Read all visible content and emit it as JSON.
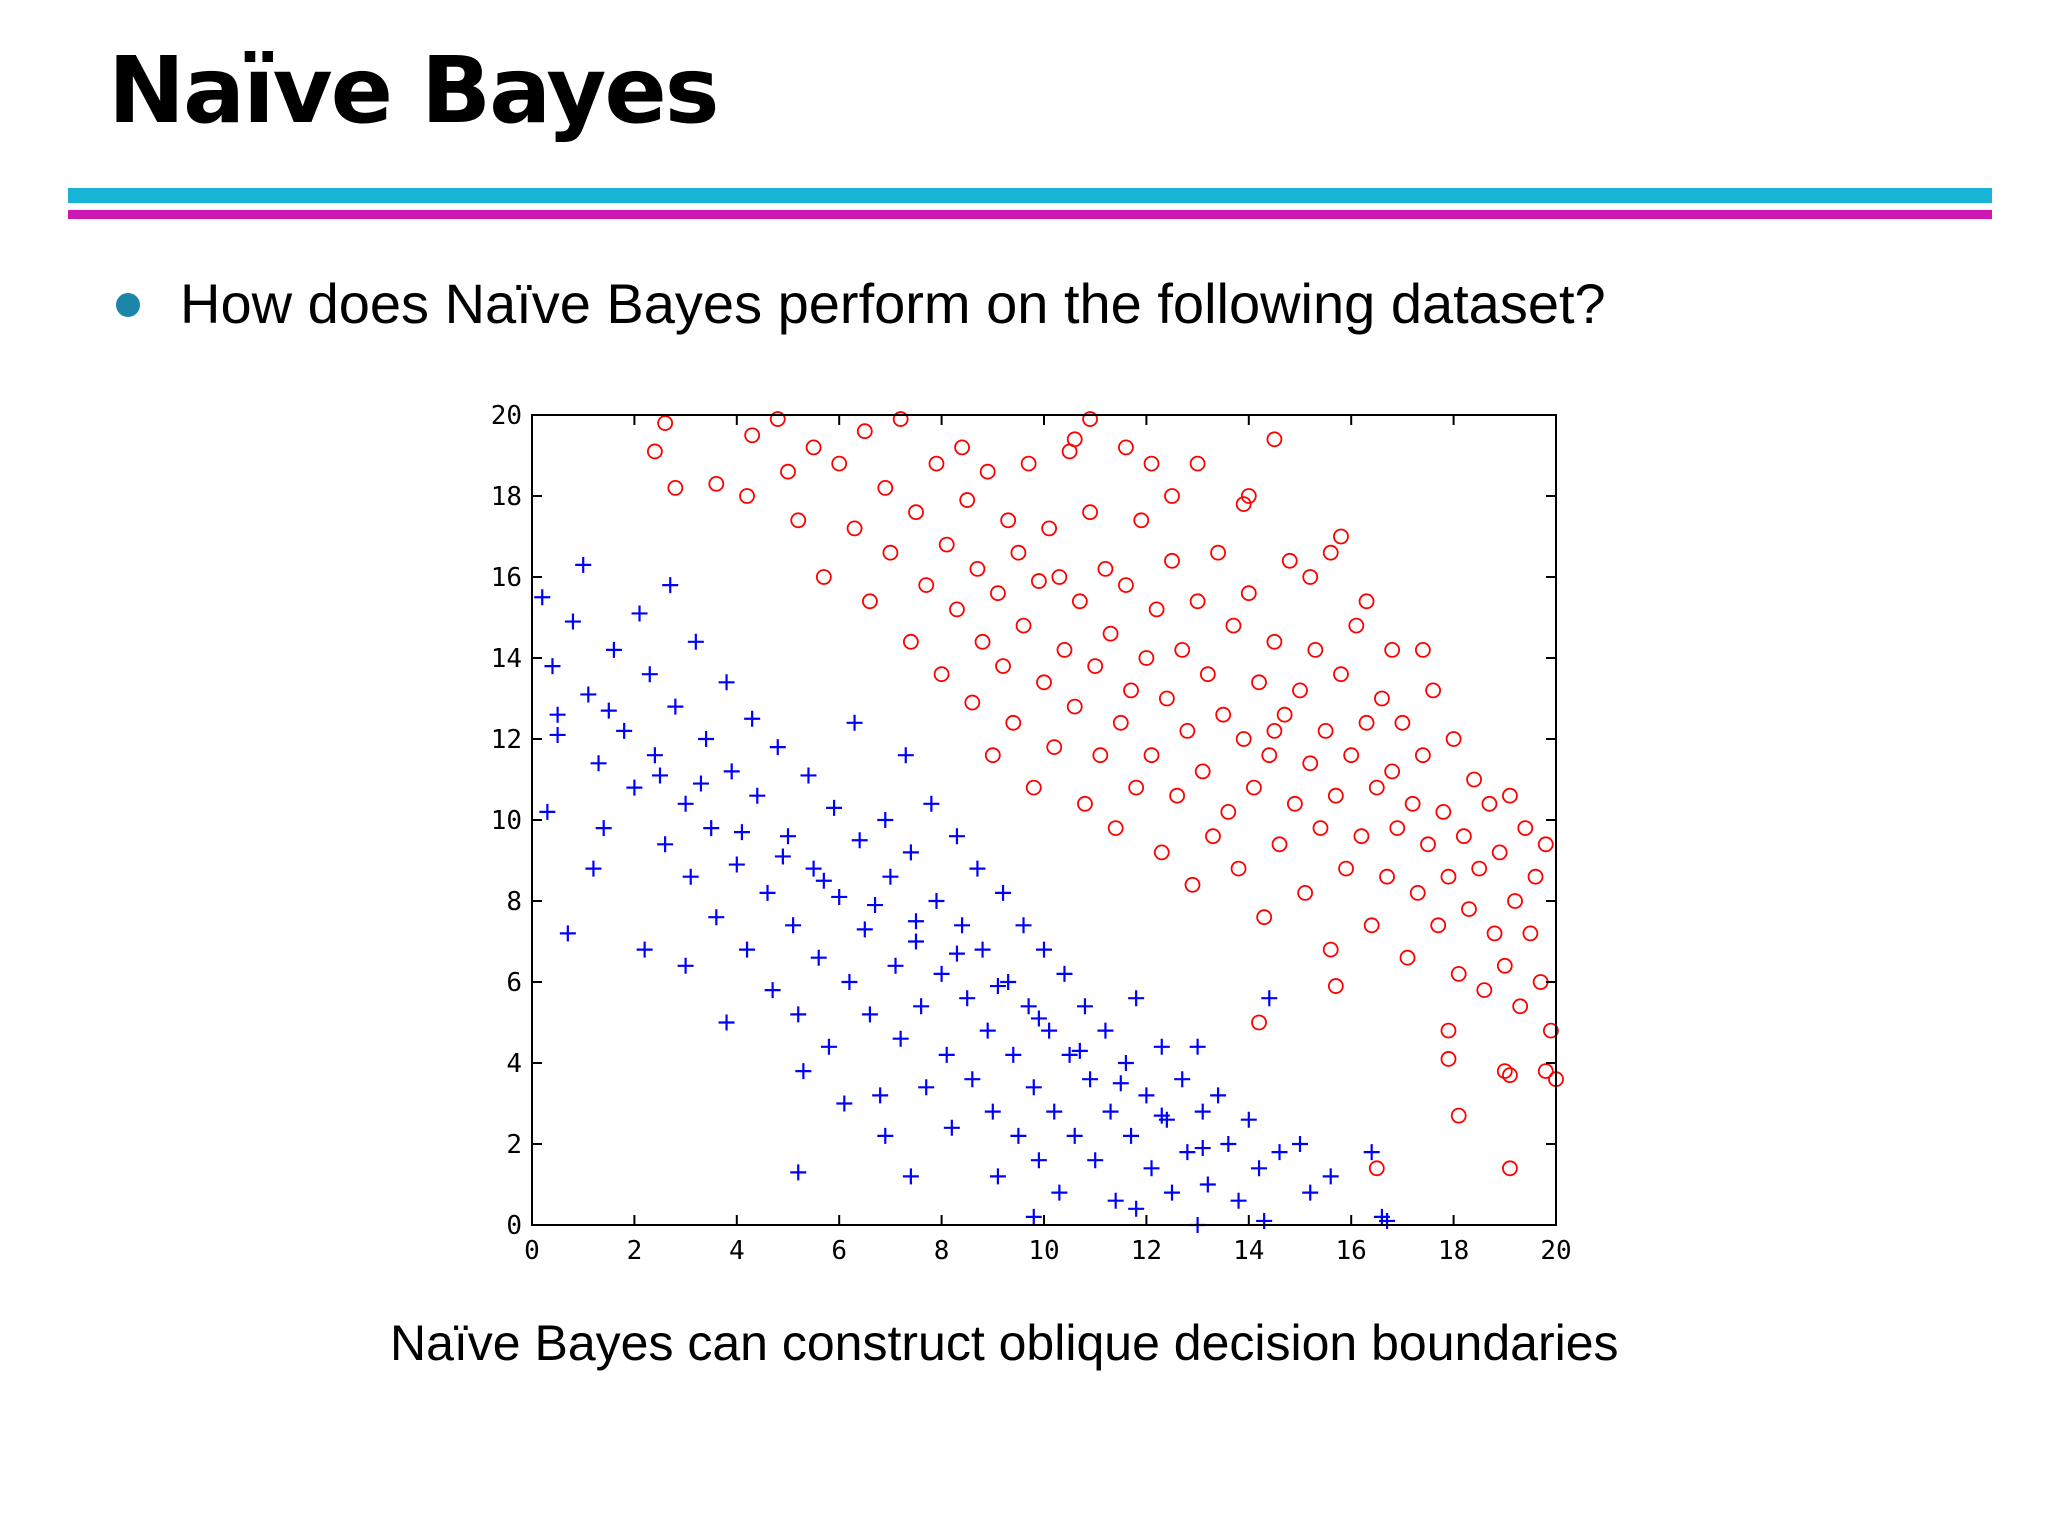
{
  "slide": {
    "title": "Naïve Bayes",
    "bullet": "How does Naïve Bayes perform on the following dataset?",
    "caption": "Naïve Bayes can construct oblique decision boundaries"
  },
  "colors": {
    "rule_top": "#18b4d6",
    "rule_bottom": "#cc17b2",
    "bullet_dot": "#1b86a8"
  },
  "chart_data": {
    "type": "scatter",
    "title": "",
    "xlabel": "",
    "ylabel": "",
    "xlim": [
      0,
      20
    ],
    "ylim": [
      0,
      20
    ],
    "xticks": [
      0,
      2,
      4,
      6,
      8,
      10,
      12,
      14,
      16,
      18,
      20
    ],
    "yticks": [
      0,
      2,
      4,
      6,
      8,
      10,
      12,
      14,
      16,
      18,
      20
    ],
    "grid": false,
    "legend": "none",
    "series": [
      {
        "marker": "plus",
        "color": "#0000ff",
        "points": [
          [
            0.2,
            15.5
          ],
          [
            0.4,
            13.8
          ],
          [
            0.5,
            12.6
          ],
          [
            0.3,
            10.2
          ],
          [
            0.8,
            14.9
          ],
          [
            1.0,
            16.3
          ],
          [
            1.1,
            13.1
          ],
          [
            1.3,
            11.4
          ],
          [
            1.4,
            9.8
          ],
          [
            1.6,
            14.2
          ],
          [
            1.8,
            12.2
          ],
          [
            2.0,
            10.8
          ],
          [
            2.1,
            15.1
          ],
          [
            2.3,
            13.6
          ],
          [
            2.4,
            11.6
          ],
          [
            2.6,
            9.4
          ],
          [
            2.7,
            15.8
          ],
          [
            2.8,
            12.8
          ],
          [
            3.0,
            10.4
          ],
          [
            3.1,
            8.6
          ],
          [
            3.2,
            14.4
          ],
          [
            3.4,
            12.0
          ],
          [
            3.5,
            9.8
          ],
          [
            3.6,
            7.6
          ],
          [
            3.8,
            13.4
          ],
          [
            3.9,
            11.2
          ],
          [
            4.0,
            8.9
          ],
          [
            4.2,
            6.8
          ],
          [
            4.3,
            12.5
          ],
          [
            4.4,
            10.6
          ],
          [
            4.6,
            8.2
          ],
          [
            4.7,
            5.8
          ],
          [
            4.8,
            11.8
          ],
          [
            5.0,
            9.6
          ],
          [
            5.1,
            7.4
          ],
          [
            5.2,
            5.2
          ],
          [
            5.4,
            11.1
          ],
          [
            5.5,
            8.8
          ],
          [
            5.6,
            6.6
          ],
          [
            5.8,
            4.4
          ],
          [
            5.9,
            10.3
          ],
          [
            6.0,
            8.1
          ],
          [
            6.2,
            6.0
          ],
          [
            6.3,
            12.4
          ],
          [
            6.4,
            9.5
          ],
          [
            6.5,
            7.3
          ],
          [
            6.6,
            5.2
          ],
          [
            6.8,
            3.2
          ],
          [
            6.9,
            10.0
          ],
          [
            7.0,
            8.6
          ],
          [
            7.1,
            6.4
          ],
          [
            7.2,
            4.6
          ],
          [
            7.3,
            11.6
          ],
          [
            7.4,
            9.2
          ],
          [
            7.5,
            7.0
          ],
          [
            7.6,
            5.4
          ],
          [
            7.7,
            3.4
          ],
          [
            7.8,
            10.4
          ],
          [
            7.9,
            8.0
          ],
          [
            8.0,
            6.2
          ],
          [
            8.1,
            4.2
          ],
          [
            8.2,
            2.4
          ],
          [
            8.3,
            9.6
          ],
          [
            8.4,
            7.4
          ],
          [
            8.5,
            5.6
          ],
          [
            8.6,
            3.6
          ],
          [
            8.7,
            8.8
          ],
          [
            8.8,
            6.8
          ],
          [
            8.9,
            4.8
          ],
          [
            9.0,
            2.8
          ],
          [
            9.1,
            1.2
          ],
          [
            9.2,
            8.2
          ],
          [
            9.3,
            6.0
          ],
          [
            9.4,
            4.2
          ],
          [
            9.5,
            2.2
          ],
          [
            9.6,
            7.4
          ],
          [
            9.7,
            5.4
          ],
          [
            9.8,
            3.4
          ],
          [
            9.9,
            1.6
          ],
          [
            10.0,
            6.8
          ],
          [
            10.1,
            4.8
          ],
          [
            10.2,
            2.8
          ],
          [
            10.3,
            0.8
          ],
          [
            10.4,
            6.2
          ],
          [
            10.5,
            4.2
          ],
          [
            10.6,
            2.2
          ],
          [
            10.8,
            5.4
          ],
          [
            10.9,
            3.6
          ],
          [
            11.0,
            1.6
          ],
          [
            11.2,
            4.8
          ],
          [
            11.3,
            2.8
          ],
          [
            11.4,
            0.6
          ],
          [
            11.6,
            4.0
          ],
          [
            11.7,
            2.2
          ],
          [
            11.8,
            5.6
          ],
          [
            12.0,
            3.2
          ],
          [
            12.1,
            1.4
          ],
          [
            12.3,
            4.4
          ],
          [
            12.4,
            2.6
          ],
          [
            12.5,
            0.8
          ],
          [
            12.7,
            3.6
          ],
          [
            12.8,
            1.8
          ],
          [
            13.0,
            4.4
          ],
          [
            13.1,
            2.8
          ],
          [
            13.2,
            1.0
          ],
          [
            13.4,
            3.2
          ],
          [
            13.6,
            2.0
          ],
          [
            13.8,
            0.6
          ],
          [
            14.0,
            2.6
          ],
          [
            14.2,
            1.4
          ],
          [
            14.4,
            5.6
          ],
          [
            14.6,
            1.8
          ],
          [
            15.0,
            2.0
          ],
          [
            15.2,
            0.8
          ],
          [
            15.6,
            1.2
          ],
          [
            16.4,
            1.8
          ],
          [
            16.6,
            0.2
          ],
          [
            1.2,
            8.8
          ],
          [
            0.7,
            7.2
          ],
          [
            2.2,
            6.8
          ],
          [
            3.0,
            6.4
          ],
          [
            3.8,
            5.0
          ],
          [
            5.3,
            3.8
          ],
          [
            6.1,
            3.0
          ],
          [
            6.9,
            2.2
          ],
          [
            7.4,
            1.2
          ],
          [
            5.2,
            1.3
          ],
          [
            9.8,
            0.2
          ],
          [
            11.8,
            0.4
          ],
          [
            13.0,
            0.0
          ],
          [
            14.3,
            0.1
          ],
          [
            16.7,
            0.1
          ],
          [
            0.5,
            12.1
          ],
          [
            1.5,
            12.7
          ],
          [
            2.5,
            11.1
          ],
          [
            3.3,
            10.9
          ],
          [
            4.1,
            9.7
          ],
          [
            4.9,
            9.1
          ],
          [
            5.7,
            8.5
          ],
          [
            6.7,
            7.9
          ],
          [
            7.5,
            7.5
          ],
          [
            8.3,
            6.7
          ],
          [
            9.1,
            5.9
          ],
          [
            9.9,
            5.1
          ],
          [
            10.7,
            4.3
          ],
          [
            11.5,
            3.5
          ],
          [
            12.3,
            2.7
          ],
          [
            13.1,
            1.9
          ]
        ]
      },
      {
        "marker": "circle",
        "color": "#ff0000",
        "points": [
          [
            2.4,
            19.1
          ],
          [
            2.6,
            19.8
          ],
          [
            2.8,
            18.2
          ],
          [
            3.6,
            18.3
          ],
          [
            4.2,
            18.0
          ],
          [
            4.3,
            19.5
          ],
          [
            4.8,
            19.9
          ],
          [
            5.0,
            18.6
          ],
          [
            5.2,
            17.4
          ],
          [
            5.5,
            19.2
          ],
          [
            5.7,
            16.0
          ],
          [
            6.0,
            18.8
          ],
          [
            6.3,
            17.2
          ],
          [
            6.5,
            19.6
          ],
          [
            6.6,
            15.4
          ],
          [
            6.9,
            18.2
          ],
          [
            7.0,
            16.6
          ],
          [
            7.2,
            19.9
          ],
          [
            7.4,
            14.4
          ],
          [
            7.5,
            17.6
          ],
          [
            7.7,
            15.8
          ],
          [
            7.9,
            18.8
          ],
          [
            8.0,
            13.6
          ],
          [
            8.1,
            16.8
          ],
          [
            8.3,
            15.2
          ],
          [
            8.4,
            19.2
          ],
          [
            8.5,
            17.9
          ],
          [
            8.6,
            12.9
          ],
          [
            8.7,
            16.2
          ],
          [
            8.8,
            14.4
          ],
          [
            8.9,
            18.6
          ],
          [
            9.0,
            11.6
          ],
          [
            9.1,
            15.6
          ],
          [
            9.2,
            13.8
          ],
          [
            9.3,
            17.4
          ],
          [
            9.4,
            12.4
          ],
          [
            9.5,
            16.6
          ],
          [
            9.6,
            14.8
          ],
          [
            9.7,
            18.8
          ],
          [
            9.8,
            10.8
          ],
          [
            9.9,
            15.9
          ],
          [
            10.0,
            13.4
          ],
          [
            10.1,
            17.2
          ],
          [
            10.2,
            11.8
          ],
          [
            10.3,
            16.0
          ],
          [
            10.4,
            14.2
          ],
          [
            10.5,
            19.1
          ],
          [
            10.6,
            12.8
          ],
          [
            10.7,
            15.4
          ],
          [
            10.8,
            10.4
          ],
          [
            10.9,
            17.6
          ],
          [
            11.0,
            13.8
          ],
          [
            11.1,
            11.6
          ],
          [
            11.2,
            16.2
          ],
          [
            11.3,
            14.6
          ],
          [
            11.4,
            9.8
          ],
          [
            11.5,
            12.4
          ],
          [
            11.6,
            15.8
          ],
          [
            11.7,
            13.2
          ],
          [
            11.8,
            10.8
          ],
          [
            11.9,
            17.4
          ],
          [
            12.0,
            14.0
          ],
          [
            12.1,
            11.6
          ],
          [
            12.2,
            15.2
          ],
          [
            12.3,
            9.2
          ],
          [
            12.4,
            13.0
          ],
          [
            12.5,
            16.4
          ],
          [
            12.6,
            10.6
          ],
          [
            12.7,
            14.2
          ],
          [
            12.8,
            12.2
          ],
          [
            12.9,
            8.4
          ],
          [
            13.0,
            15.4
          ],
          [
            13.1,
            11.2
          ],
          [
            13.2,
            13.6
          ],
          [
            13.3,
            9.6
          ],
          [
            13.4,
            16.6
          ],
          [
            13.5,
            12.6
          ],
          [
            13.6,
            10.2
          ],
          [
            13.7,
            14.8
          ],
          [
            13.8,
            8.8
          ],
          [
            13.9,
            12.0
          ],
          [
            14.0,
            15.6
          ],
          [
            14.1,
            10.8
          ],
          [
            14.2,
            13.4
          ],
          [
            14.3,
            7.6
          ],
          [
            14.4,
            11.6
          ],
          [
            14.5,
            14.4
          ],
          [
            14.6,
            9.4
          ],
          [
            14.7,
            12.6
          ],
          [
            14.8,
            16.4
          ],
          [
            14.9,
            10.4
          ],
          [
            15.0,
            13.2
          ],
          [
            15.1,
            8.2
          ],
          [
            15.2,
            11.4
          ],
          [
            15.3,
            14.2
          ],
          [
            15.4,
            9.8
          ],
          [
            15.5,
            12.2
          ],
          [
            15.6,
            6.8
          ],
          [
            15.7,
            10.6
          ],
          [
            15.8,
            13.6
          ],
          [
            15.9,
            8.8
          ],
          [
            16.0,
            11.6
          ],
          [
            16.1,
            14.8
          ],
          [
            16.2,
            9.6
          ],
          [
            16.3,
            12.4
          ],
          [
            16.4,
            7.4
          ],
          [
            16.5,
            10.8
          ],
          [
            16.6,
            13.0
          ],
          [
            16.7,
            8.6
          ],
          [
            16.8,
            11.2
          ],
          [
            16.9,
            9.8
          ],
          [
            17.0,
            12.4
          ],
          [
            17.1,
            6.6
          ],
          [
            17.2,
            10.4
          ],
          [
            17.3,
            8.2
          ],
          [
            17.4,
            11.6
          ],
          [
            17.5,
            9.4
          ],
          [
            17.6,
            13.2
          ],
          [
            17.7,
            7.4
          ],
          [
            17.8,
            10.2
          ],
          [
            17.9,
            8.6
          ],
          [
            18.0,
            12.0
          ],
          [
            18.1,
            6.2
          ],
          [
            18.2,
            9.6
          ],
          [
            18.3,
            7.8
          ],
          [
            18.4,
            11.0
          ],
          [
            18.5,
            8.8
          ],
          [
            18.6,
            5.8
          ],
          [
            18.7,
            10.4
          ],
          [
            18.8,
            7.2
          ],
          [
            18.9,
            9.2
          ],
          [
            19.0,
            6.4
          ],
          [
            19.1,
            10.6
          ],
          [
            19.2,
            8.0
          ],
          [
            19.3,
            5.4
          ],
          [
            19.4,
            9.8
          ],
          [
            19.5,
            7.2
          ],
          [
            19.6,
            8.6
          ],
          [
            19.7,
            6.0
          ],
          [
            19.8,
            9.4
          ],
          [
            19.9,
            4.8
          ],
          [
            20.0,
            3.6
          ],
          [
            19.8,
            3.8
          ],
          [
            19.1,
            3.7
          ],
          [
            19.0,
            3.8
          ],
          [
            19.1,
            1.4
          ],
          [
            18.1,
            2.7
          ],
          [
            17.9,
            4.1
          ],
          [
            17.9,
            4.8
          ],
          [
            16.5,
            1.4
          ],
          [
            14.2,
            5.0
          ],
          [
            15.7,
            5.9
          ],
          [
            14.5,
            12.2
          ],
          [
            13.9,
            17.8
          ],
          [
            14.0,
            18.0
          ],
          [
            14.5,
            19.4
          ],
          [
            15.2,
            16.0
          ],
          [
            15.6,
            16.6
          ],
          [
            15.8,
            17.0
          ],
          [
            16.3,
            15.4
          ],
          [
            16.8,
            14.2
          ],
          [
            17.4,
            14.2
          ],
          [
            12.1,
            18.8
          ],
          [
            11.6,
            19.2
          ],
          [
            10.9,
            19.9
          ],
          [
            10.6,
            19.4
          ],
          [
            13.0,
            18.8
          ],
          [
            12.5,
            18.0
          ]
        ]
      }
    ]
  }
}
